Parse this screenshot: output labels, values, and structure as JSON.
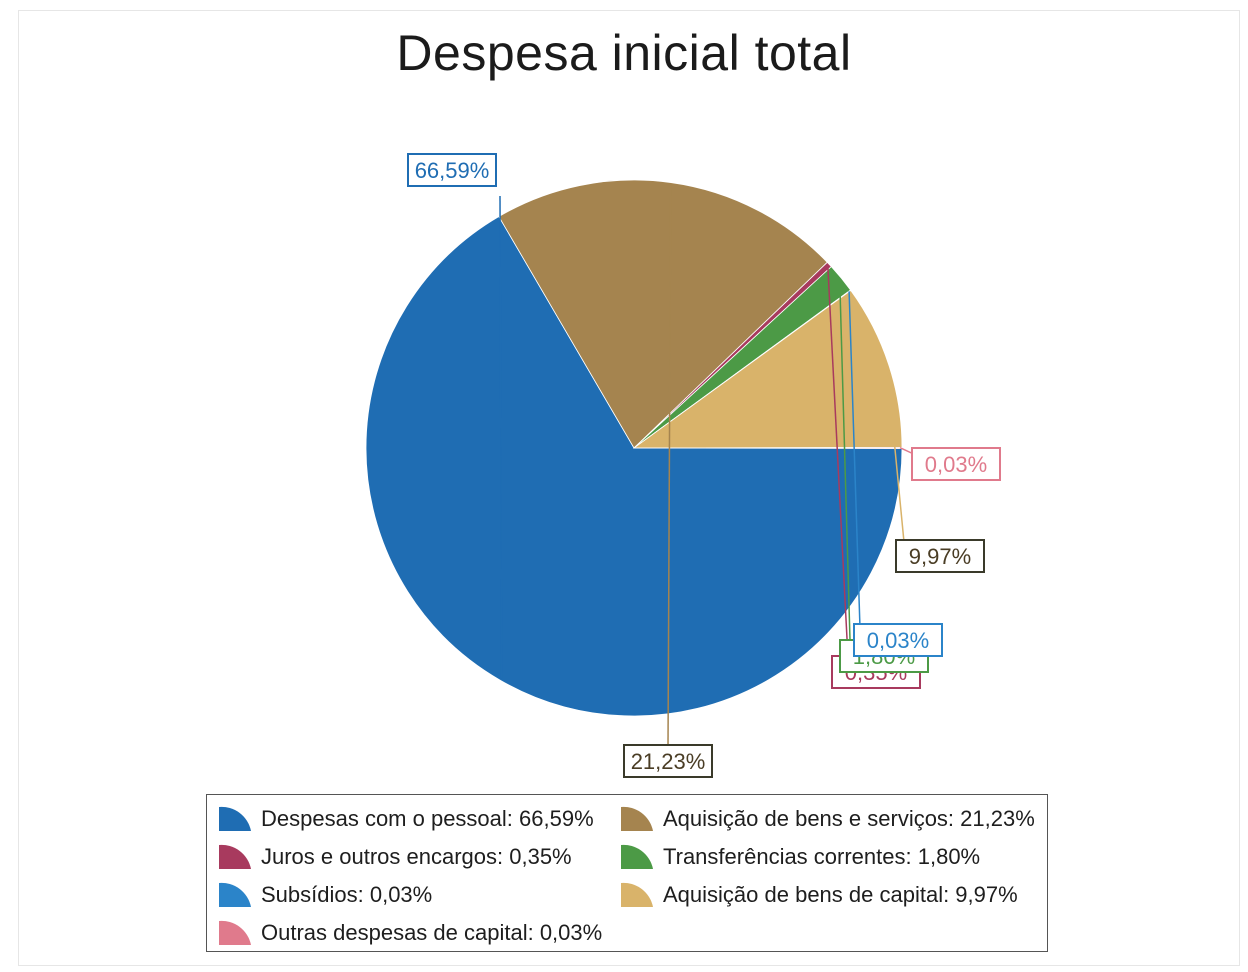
{
  "chart_data": {
    "type": "pie",
    "title": "Despesa inicial total",
    "slices": [
      {
        "name": "Despesas com o pessoal",
        "value": 66.59,
        "label": "66,59%",
        "color": "#1f6db3",
        "legend": "Despesas com o pessoal: 66,59%"
      },
      {
        "name": "Aquisição de bens e serviços",
        "value": 21.23,
        "label": "21,23%",
        "color": "#a5844f",
        "legend": "Aquisição de bens e serviços: 21,23%"
      },
      {
        "name": "Juros e outros encargos",
        "value": 0.35,
        "label": "0,35%",
        "color": "#a83a5e",
        "legend": "Juros e outros encargos: 0,35%"
      },
      {
        "name": "Transferências correntes",
        "value": 1.8,
        "label": "1,80%",
        "color": "#4c9a46",
        "legend": "Transferências correntes: 1,80%"
      },
      {
        "name": "Subsídios",
        "value": 0.03,
        "label": "0,03%",
        "color": "#2b84c9",
        "legend": "Subsídios: 0,03%"
      },
      {
        "name": "Aquisição de bens de capital",
        "value": 9.97,
        "label": "9,97%",
        "color": "#d9b36a",
        "legend": "Aquisição de bens de capital: 9,97%"
      },
      {
        "name": "Outras despesas de capital",
        "value": 0.03,
        "label": "0,03%",
        "color": "#e07a8c",
        "legend": "Outras despesas de capital: 0,03%"
      }
    ],
    "legend_placement": "bottom",
    "legend_order": [
      0,
      1,
      2,
      3,
      4,
      5,
      6
    ]
  }
}
